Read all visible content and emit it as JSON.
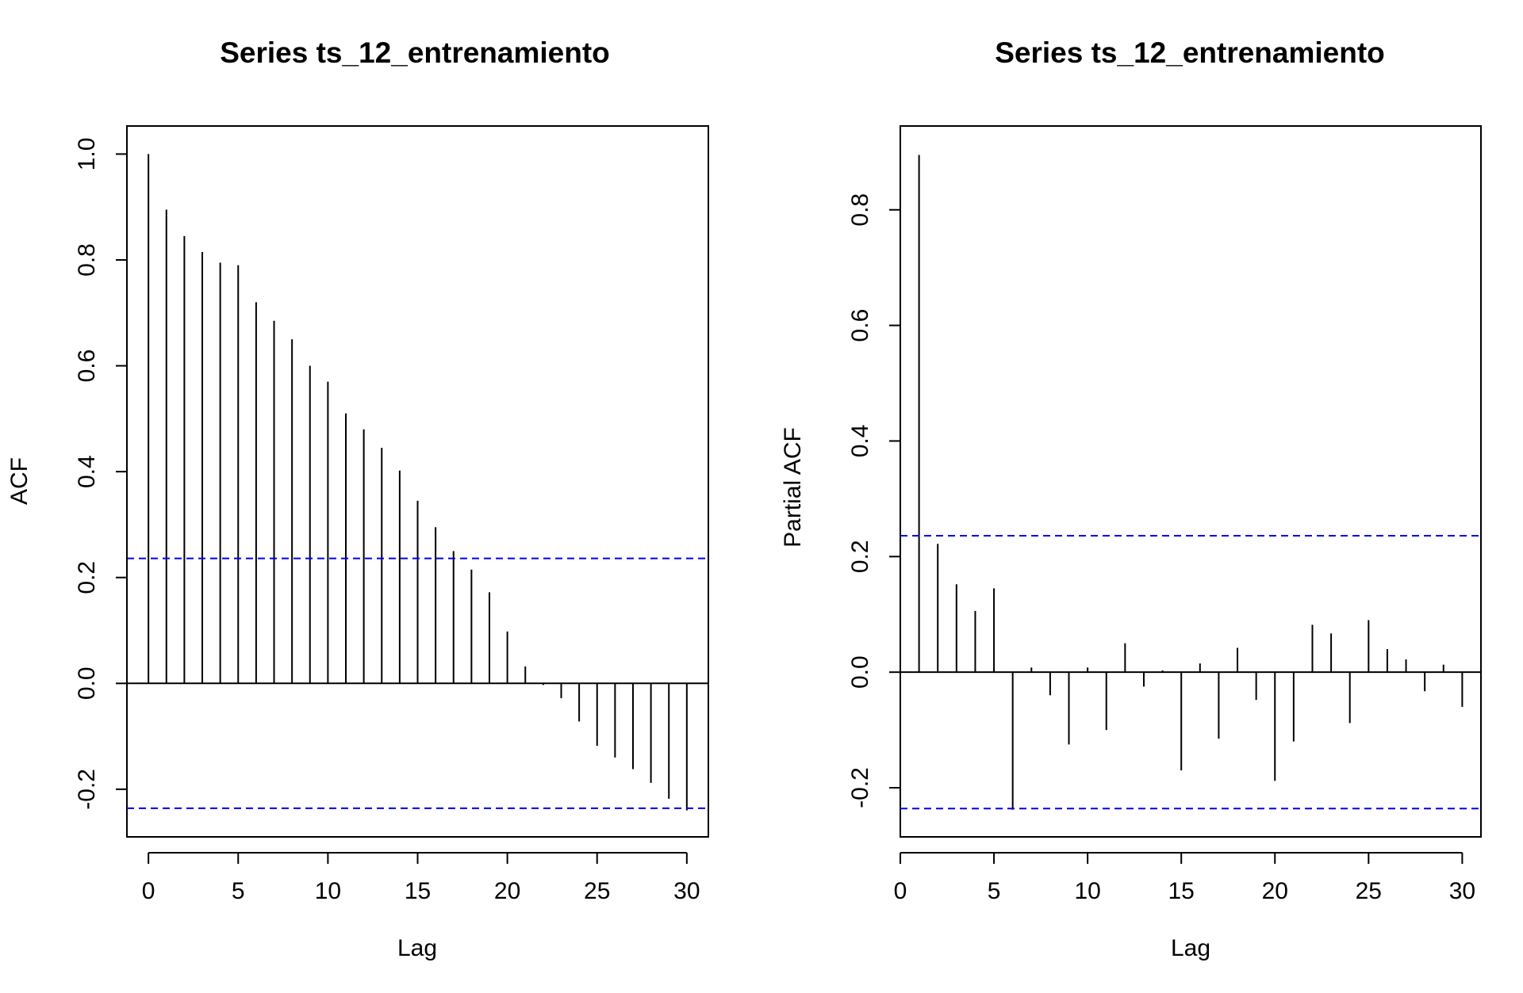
{
  "chart_data": [
    {
      "type": "bar",
      "title": "Series  ts_12_entrenamiento",
      "xlabel": "Lag",
      "ylabel": "ACF",
      "xlim": [
        -1.2,
        31.2
      ],
      "ylim": [
        -0.29,
        1.053
      ],
      "xticks": [
        0,
        5,
        10,
        15,
        20,
        25,
        30
      ],
      "xtick_labels": [
        "0",
        "5",
        "10",
        "15",
        "20",
        "25",
        "30"
      ],
      "yticks": [
        -0.2,
        0.0,
        0.2,
        0.4,
        0.6,
        0.8,
        1.0
      ],
      "ytick_labels": [
        "-0.2",
        "0.0",
        "0.2",
        "0.4",
        "0.6",
        "0.8",
        "1.0"
      ],
      "lags": [
        0,
        1,
        2,
        3,
        4,
        5,
        6,
        7,
        8,
        9,
        10,
        11,
        12,
        13,
        14,
        15,
        16,
        17,
        18,
        19,
        20,
        21,
        22,
        23,
        24,
        25,
        26,
        27,
        28,
        29,
        30
      ],
      "values": [
        1.0,
        0.895,
        0.845,
        0.815,
        0.795,
        0.79,
        0.72,
        0.685,
        0.65,
        0.6,
        0.57,
        0.51,
        0.48,
        0.445,
        0.402,
        0.345,
        0.295,
        0.25,
        0.215,
        0.172,
        0.098,
        0.032,
        -0.003,
        -0.028,
        -0.072,
        -0.118,
        -0.14,
        -0.162,
        -0.188,
        -0.218,
        -0.24
      ],
      "confidence_bound": 0.236,
      "colors": {
        "bars": "#000000",
        "bounds": "#0000ee"
      },
      "grid": false
    },
    {
      "type": "bar",
      "title": "Series  ts_12_entrenamiento",
      "xlabel": "Lag",
      "ylabel": "Partial ACF",
      "xlim": [
        0.0,
        31.0
      ],
      "ylim": [
        -0.285,
        0.945
      ],
      "xticks": [
        0,
        5,
        10,
        15,
        20,
        25,
        30
      ],
      "xtick_labels": [
        "0",
        "5",
        "10",
        "15",
        "20",
        "25",
        "30"
      ],
      "yticks": [
        -0.2,
        0.0,
        0.2,
        0.4,
        0.6,
        0.8
      ],
      "ytick_labels": [
        "-0.2",
        "0.0",
        "0.2",
        "0.4",
        "0.6",
        "0.8"
      ],
      "lags": [
        1,
        2,
        3,
        4,
        5,
        6,
        7,
        8,
        9,
        10,
        11,
        12,
        13,
        14,
        15,
        16,
        17,
        18,
        19,
        20,
        21,
        22,
        23,
        24,
        25,
        26,
        27,
        28,
        29,
        30
      ],
      "values": [
        0.895,
        0.222,
        0.152,
        0.106,
        0.145,
        -0.238,
        0.008,
        -0.04,
        -0.125,
        0.008,
        -0.1,
        0.05,
        -0.025,
        0.003,
        -0.17,
        0.015,
        -0.115,
        0.042,
        -0.048,
        -0.188,
        -0.12,
        0.082,
        0.067,
        -0.088,
        0.09,
        0.04,
        0.022,
        -0.033,
        0.013,
        -0.06
      ],
      "confidence_bound": 0.236,
      "colors": {
        "bars": "#000000",
        "bounds": "#0000ee"
      },
      "grid": false
    }
  ]
}
